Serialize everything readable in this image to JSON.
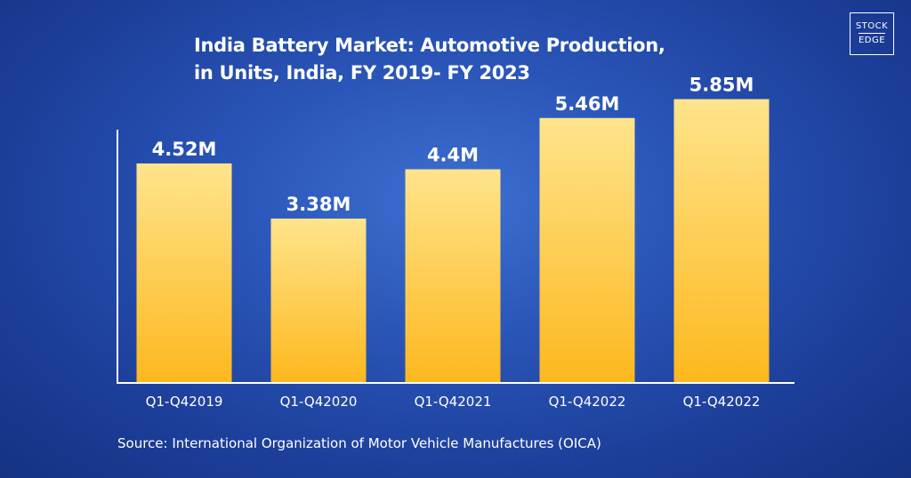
{
  "title_lines": [
    "India Battery Market: Automotive Production,",
    "in Units, India, FY 2019- FY 2023"
  ],
  "logo": {
    "line1": "STOCK",
    "line2": "EDGE"
  },
  "source": "Source: International Organization of Motor Vehicle Manufactures (OICA)",
  "colors": {
    "bar_top": "#ffe48c",
    "bar_bottom": "#fdb81e",
    "axis": "#ffffff"
  },
  "chart_data": {
    "type": "bar",
    "categories": [
      "Q1-Q42019",
      "Q1-Q42020",
      "Q1-Q42021",
      "Q1-Q42022",
      "Q1-Q42022"
    ],
    "values": [
      4.52,
      3.38,
      4.4,
      5.46,
      5.85
    ],
    "data_labels": [
      "4.52M",
      "3.38M",
      "4.4M",
      "5.46M",
      "5.85M"
    ],
    "unit": "M",
    "ylim": [
      0,
      6.43
    ],
    "grid": false,
    "legend": "none"
  }
}
